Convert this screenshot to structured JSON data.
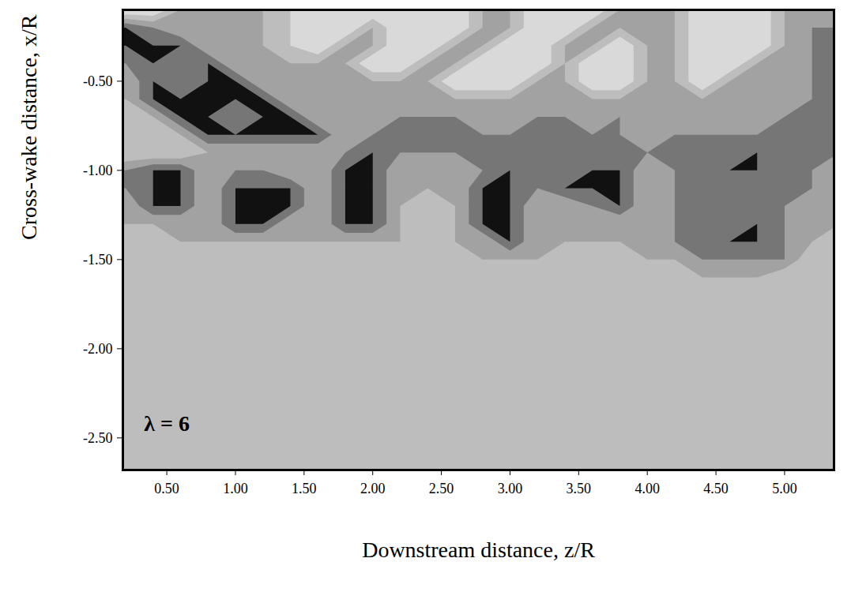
{
  "chart_data": {
    "type": "contour",
    "xlabel": "Downstream distance, z/R",
    "ylabel": "Cross-wake distance, x/R",
    "annotation": {
      "text": "λ = 6",
      "x": 0.5,
      "y": -2.42
    },
    "xlim": [
      0.18,
      5.36
    ],
    "ylim": [
      -2.68,
      -0.1
    ],
    "xticks": [
      {
        "value": 0.5,
        "label": "0.50"
      },
      {
        "value": 1.0,
        "label": "1.00"
      },
      {
        "value": 1.5,
        "label": "1.50"
      },
      {
        "value": 2.0,
        "label": "2.00"
      },
      {
        "value": 2.5,
        "label": "2.50"
      },
      {
        "value": 3.0,
        "label": "3.00"
      },
      {
        "value": 3.5,
        "label": "3.50"
      },
      {
        "value": 4.0,
        "label": "4.00"
      },
      {
        "value": 4.5,
        "label": "4.50"
      },
      {
        "value": 5.0,
        "label": "5.00"
      }
    ],
    "yticks": [
      {
        "value": -0.5,
        "label": "-0.50"
      },
      {
        "value": -1.0,
        "label": "-1.00"
      },
      {
        "value": -1.5,
        "label": "-1.50"
      },
      {
        "value": -2.0,
        "label": "-2.00"
      },
      {
        "value": -2.5,
        "label": "-2.50"
      }
    ],
    "levels": [
      -1,
      0,
      1,
      2,
      3
    ],
    "colors": [
      "#d9d9d9",
      "#bdbdbd",
      "#a2a2a2",
      "#767676",
      "#111111"
    ],
    "cells": {
      "x": [
        0.2,
        0.4,
        0.6,
        0.8,
        1.0,
        1.2,
        1.4,
        1.6,
        1.8,
        2.0,
        2.2,
        2.4,
        2.6,
        2.8,
        3.0,
        3.2,
        3.4,
        3.6,
        3.8,
        4.0,
        4.2,
        4.4,
        4.6,
        4.8,
        5.0,
        5.2,
        5.4
      ],
      "y": [
        -0.1,
        -0.2,
        -0.3,
        -0.4,
        -0.5,
        -0.6,
        -0.7,
        -0.8,
        -0.9,
        -1.0,
        -1.1,
        -1.2,
        -1.3,
        -1.4,
        -1.5,
        -1.6,
        -1.7,
        -1.8,
        -1.9,
        -2.0,
        -2.1,
        -2.2,
        -2.3,
        -2.4,
        -2.5,
        -2.6,
        -2.7
      ],
      "values": [
        [
          -1,
          -1,
          1,
          1,
          1,
          1,
          0,
          -1,
          -1,
          -1,
          -1,
          -1,
          -1,
          1,
          1,
          -1,
          -1,
          -1,
          1,
          1,
          1,
          -1,
          -1,
          -1,
          1,
          1,
          1
        ],
        [
          3,
          2,
          1,
          1,
          1,
          1,
          0,
          -1,
          -1,
          1,
          -1,
          -1,
          -1,
          1,
          1,
          -1,
          -1,
          1,
          1,
          1,
          1,
          -1,
          -1,
          -1,
          1,
          2,
          2
        ],
        [
          3,
          3,
          3,
          1,
          1,
          1,
          0,
          -1,
          1,
          1,
          -1,
          -1,
          1,
          1,
          -1,
          -1,
          1,
          1,
          -1,
          1,
          1,
          -1,
          -1,
          -1,
          1,
          2,
          2
        ],
        [
          2,
          3,
          2,
          3,
          1,
          1,
          1,
          1,
          1,
          -1,
          -1,
          1,
          1,
          -1,
          -1,
          -1,
          1,
          -1,
          -1,
          1,
          1,
          -1,
          -1,
          1,
          1,
          2,
          2
        ],
        [
          1,
          3,
          2,
          3,
          3,
          1,
          1,
          1,
          1,
          1,
          1,
          1,
          -1,
          -1,
          -1,
          1,
          1,
          -1,
          -1,
          1,
          1,
          -1,
          1,
          1,
          1,
          2,
          2
        ],
        [
          1,
          3,
          3,
          3,
          3,
          3,
          1,
          1,
          1,
          1,
          1,
          1,
          1,
          1,
          1,
          1,
          1,
          1,
          1,
          1,
          1,
          1,
          1,
          1,
          1,
          2,
          2
        ],
        [
          0,
          1,
          3,
          3,
          2,
          3,
          3,
          1,
          1,
          1,
          2,
          2,
          2,
          1,
          1,
          2,
          2,
          1,
          2,
          1,
          1,
          1,
          1,
          1,
          2,
          2,
          2
        ],
        [
          0,
          0,
          1,
          3,
          3,
          3,
          3,
          3,
          1,
          2,
          2,
          2,
          2,
          2,
          2,
          2,
          2,
          2,
          2,
          1,
          2,
          2,
          2,
          2,
          2,
          2,
          2
        ],
        [
          0,
          0,
          0,
          1,
          1,
          1,
          1,
          1,
          2,
          3,
          2,
          2,
          2,
          2,
          2,
          2,
          2,
          2,
          2,
          2,
          2,
          2,
          2,
          3,
          2,
          2,
          2
        ],
        [
          2,
          3,
          3,
          1,
          2,
          2,
          1,
          1,
          3,
          3,
          1,
          1,
          1,
          2,
          3,
          2,
          2,
          3,
          3,
          1,
          2,
          2,
          3,
          3,
          2,
          2,
          1
        ],
        [
          2,
          3,
          3,
          1,
          3,
          3,
          3,
          1,
          3,
          3,
          1,
          1,
          1,
          3,
          3,
          2,
          3,
          3,
          3,
          1,
          2,
          2,
          2,
          2,
          2,
          2,
          1
        ],
        [
          1,
          3,
          3,
          1,
          3,
          3,
          3,
          1,
          3,
          3,
          1,
          0,
          1,
          3,
          3,
          1,
          1,
          2,
          3,
          1,
          2,
          2,
          2,
          2,
          2,
          1,
          1
        ],
        [
          1,
          1,
          1,
          1,
          3,
          3,
          1,
          1,
          3,
          3,
          1,
          0,
          1,
          3,
          3,
          1,
          1,
          1,
          1,
          1,
          2,
          2,
          2,
          3,
          2,
          1,
          1
        ],
        [
          0,
          0,
          1,
          1,
          1,
          1,
          1,
          1,
          1,
          1,
          1,
          0,
          1,
          1,
          3,
          1,
          1,
          1,
          1,
          1,
          2,
          2,
          3,
          3,
          2,
          1,
          0
        ],
        [
          0,
          0,
          0,
          0,
          0,
          0,
          0,
          0,
          0,
          0,
          0,
          0,
          0,
          1,
          1,
          1,
          0,
          0,
          0,
          1,
          1,
          2,
          2,
          2,
          2,
          0,
          0
        ],
        [
          0,
          0,
          0,
          0,
          0,
          0,
          0,
          0,
          0,
          0,
          0,
          0,
          0,
          0,
          0,
          0,
          0,
          0,
          0,
          0,
          0,
          1,
          1,
          1,
          0,
          0,
          0
        ],
        [
          0,
          0,
          0,
          0,
          0,
          0,
          0,
          0,
          0,
          0,
          0,
          0,
          0,
          0,
          0,
          0,
          0,
          0,
          0,
          0,
          0,
          0,
          0,
          0,
          0,
          0,
          0
        ],
        [
          0,
          0,
          0,
          0,
          0,
          0,
          0,
          0,
          0,
          0,
          0,
          0,
          0,
          0,
          0,
          0,
          0,
          0,
          0,
          0,
          0,
          0,
          0,
          0,
          0,
          0,
          0
        ],
        [
          0,
          0,
          0,
          0,
          0,
          0,
          0,
          0,
          0,
          0,
          0,
          0,
          0,
          0,
          0,
          0,
          0,
          0,
          0,
          0,
          0,
          0,
          0,
          0,
          0,
          0,
          0
        ],
        [
          0,
          0,
          0,
          0,
          0,
          0,
          0,
          0,
          0,
          0,
          0,
          0,
          0,
          0,
          0,
          0,
          0,
          0,
          0,
          0,
          0,
          0,
          0,
          0,
          0,
          0,
          0
        ],
        [
          0,
          0,
          0,
          0,
          0,
          0,
          0,
          0,
          0,
          0,
          0,
          0,
          0,
          0,
          0,
          0,
          0,
          0,
          0,
          0,
          0,
          0,
          0,
          0,
          0,
          0,
          0
        ],
        [
          0,
          0,
          0,
          0,
          0,
          0,
          0,
          0,
          0,
          0,
          0,
          0,
          0,
          0,
          0,
          0,
          0,
          0,
          0,
          0,
          0,
          0,
          0,
          0,
          0,
          0,
          0
        ],
        [
          0,
          0,
          0,
          0,
          0,
          0,
          0,
          0,
          0,
          0,
          0,
          0,
          0,
          0,
          0,
          0,
          0,
          0,
          0,
          0,
          0,
          0,
          0,
          0,
          0,
          0,
          0
        ],
        [
          0,
          0,
          0,
          0,
          0,
          0,
          0,
          0,
          0,
          0,
          0,
          0,
          0,
          0,
          0,
          0,
          0,
          0,
          0,
          0,
          0,
          0,
          0,
          0,
          0,
          0,
          0
        ],
        [
          0,
          0,
          0,
          0,
          0,
          0,
          0,
          0,
          0,
          0,
          0,
          0,
          0,
          0,
          0,
          0,
          0,
          0,
          0,
          0,
          0,
          0,
          0,
          0,
          0,
          0,
          0
        ],
        [
          0,
          0,
          0,
          0,
          0,
          0,
          0,
          0,
          0,
          0,
          0,
          0,
          0,
          0,
          0,
          0,
          0,
          0,
          0,
          0,
          0,
          0,
          0,
          0,
          0,
          0,
          0
        ],
        [
          0,
          0,
          0,
          0,
          0,
          0,
          0,
          0,
          0,
          0,
          0,
          0,
          0,
          0,
          0,
          0,
          0,
          0,
          0,
          0,
          0,
          0,
          0,
          0,
          0,
          0,
          0
        ]
      ]
    }
  }
}
